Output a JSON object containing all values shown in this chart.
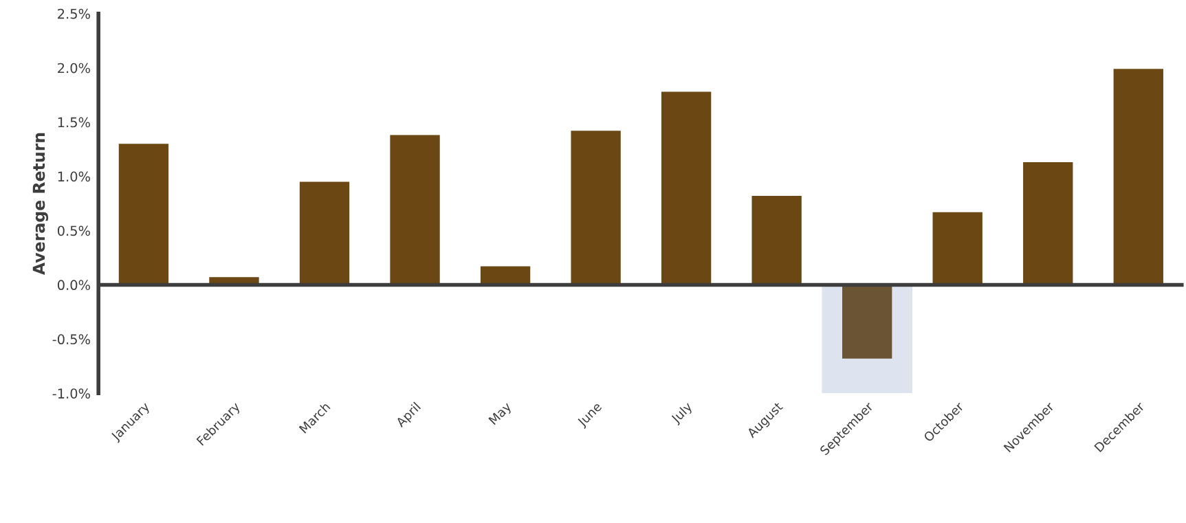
{
  "chart_data": {
    "type": "bar",
    "ylabel": "Average Return",
    "categories": [
      "January",
      "February",
      "March",
      "April",
      "May",
      "June",
      "July",
      "August",
      "September",
      "October",
      "November",
      "December"
    ],
    "values": [
      1.3,
      0.07,
      0.95,
      1.38,
      0.17,
      1.42,
      1.78,
      0.82,
      -0.68,
      0.67,
      1.13,
      1.99
    ],
    "colors": [
      "#6b4714",
      "#6b4714",
      "#6b4714",
      "#6b4714",
      "#6b4714",
      "#6b4714",
      "#6b4714",
      "#6b4714",
      "#6b5433",
      "#6b4714",
      "#6b4714",
      "#6b4714"
    ],
    "ylim": [
      -1.0,
      2.5
    ],
    "yticks": [
      {
        "value": -1.0,
        "label": "-1.0%"
      },
      {
        "value": -0.5,
        "label": "-0.5%"
      },
      {
        "value": 0.0,
        "label": "0.0%"
      },
      {
        "value": 0.5,
        "label": "0.5%"
      },
      {
        "value": 1.0,
        "label": "1.0%"
      },
      {
        "value": 1.5,
        "label": "1.5%"
      },
      {
        "value": 2.0,
        "label": "2.0%"
      },
      {
        "value": 2.5,
        "label": "2.5%"
      }
    ],
    "bands": [
      {
        "axis": "x",
        "from": "September",
        "to": "September",
        "color": "#dde3ef"
      }
    ],
    "legend": false
  }
}
